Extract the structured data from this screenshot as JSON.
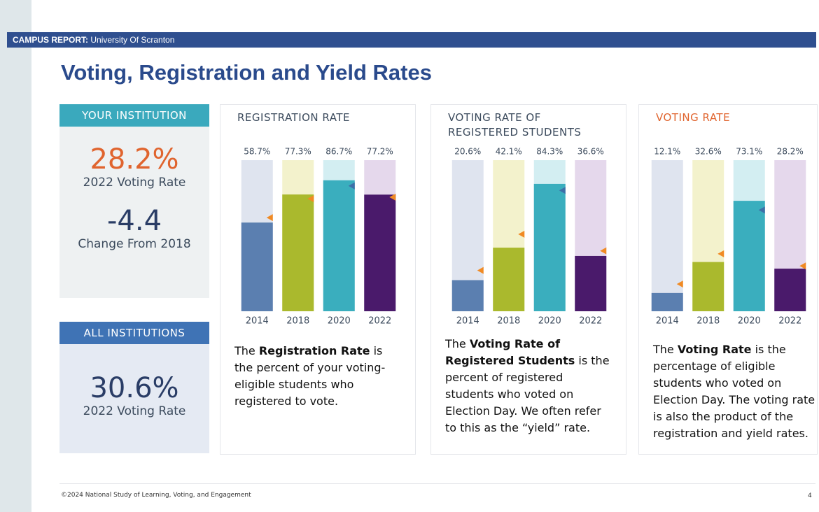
{
  "header": {
    "label": "CAMPUS REPORT:",
    "institution": "University Of Scranton"
  },
  "title": "Voting, Registration and Yield Rates",
  "your_institution": {
    "heading": "YOUR INSTITUTION",
    "rate": "28.2%",
    "rate_label": "2022 Voting Rate",
    "change": "-4.4",
    "change_label": "Change From 2018"
  },
  "all_institutions": {
    "heading": "ALL INSTITUTIONS",
    "rate": "30.6%",
    "rate_label": "2022 Voting Rate"
  },
  "charts": [
    {
      "type": "bar",
      "title": "REGISTRATION RATE",
      "title_color": "#3b4a5c",
      "categories": [
        "2014",
        "2018",
        "2020",
        "2022"
      ],
      "values": [
        58.7,
        77.3,
        86.7,
        77.2
      ],
      "value_labels": [
        "58.7%",
        "77.3%",
        "86.7%",
        "77.2%"
      ],
      "colors": [
        "#5b7fb0",
        "#aab92d",
        "#3aaebe",
        "#4a1a6b"
      ],
      "track_colors": [
        "#dfe4ef",
        "#f3f2cc",
        "#d3eef2",
        "#e5d8ec"
      ],
      "markers": [
        62,
        74.5,
        83,
        75.5
      ],
      "marker_colors": [
        "#f08a24",
        "#f08a24",
        "#3d6fa8",
        "#f08a24"
      ],
      "ylim": [
        0,
        100
      ],
      "description": {
        "before": "The ",
        "bold": "Registration Rate",
        "after": " is the percent of your voting-eligible students who registered to vote."
      }
    },
    {
      "type": "bar",
      "title": "VOTING RATE OF REGISTERED STUDENTS",
      "title_color": "#3b4a5c",
      "categories": [
        "2014",
        "2018",
        "2020",
        "2022"
      ],
      "values": [
        20.6,
        42.1,
        84.3,
        36.6
      ],
      "value_labels": [
        "20.6%",
        "42.1%",
        "84.3%",
        "36.6%"
      ],
      "colors": [
        "#5b7fb0",
        "#aab92d",
        "#3aaebe",
        "#4a1a6b"
      ],
      "track_colors": [
        "#dfe4ef",
        "#f3f2cc",
        "#d3eef2",
        "#e5d8ec"
      ],
      "markers": [
        27,
        51,
        80,
        40
      ],
      "marker_colors": [
        "#f08a24",
        "#f08a24",
        "#3d6fa8",
        "#f08a24"
      ],
      "ylim": [
        0,
        100
      ],
      "description": {
        "before": "The ",
        "bold": "Voting Rate of Registered Students",
        "after": " is the percent of registered students who voted on Election Day. We often refer to this as the “yield” rate."
      }
    },
    {
      "type": "bar",
      "title": "VOTING RATE",
      "title_color": "#e0642e",
      "categories": [
        "2014",
        "2018",
        "2020",
        "2022"
      ],
      "values": [
        12.1,
        32.6,
        73.1,
        28.2
      ],
      "value_labels": [
        "12.1%",
        "32.6%",
        "73.1%",
        "28.2%"
      ],
      "colors": [
        "#5b7fb0",
        "#aab92d",
        "#3aaebe",
        "#4a1a6b"
      ],
      "track_colors": [
        "#dfe4ef",
        "#f3f2cc",
        "#d3eef2",
        "#e5d8ec"
      ],
      "markers": [
        18,
        38,
        67,
        30
      ],
      "marker_colors": [
        "#f08a24",
        "#f08a24",
        "#3d6fa8",
        "#f08a24"
      ],
      "ylim": [
        0,
        100
      ],
      "description": {
        "before": "The ",
        "bold": "Voting Rate",
        "after": " is the percentage of eligible students who voted on Election Day. The voting rate is also the product of the registration and yield rates."
      }
    }
  ],
  "footer": "©2024 National Study of Learning, Voting, and Engagement",
  "page_number": "4"
}
